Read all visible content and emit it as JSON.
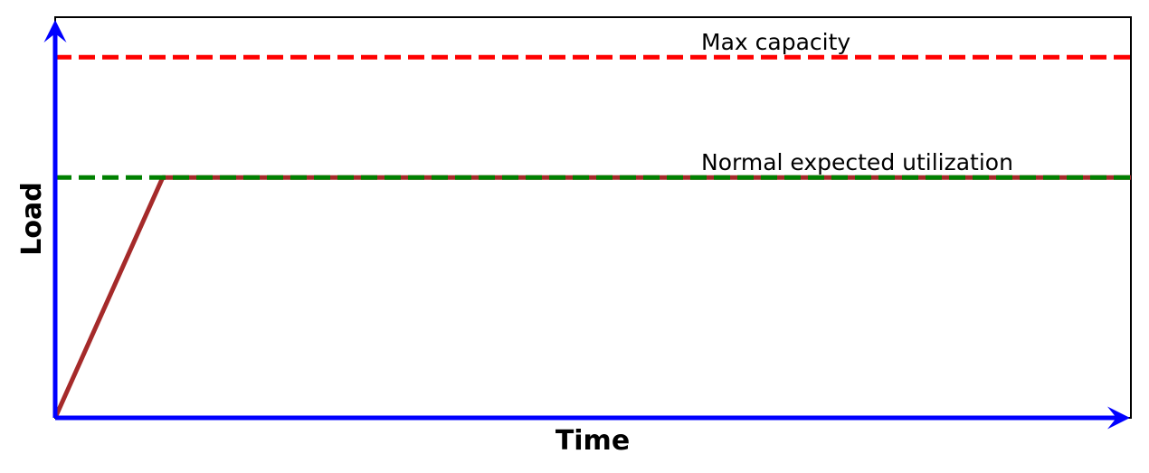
{
  "chart_data": {
    "type": "line",
    "title": "",
    "xlabel": "Time",
    "ylabel": "Load",
    "xlim": [
      0,
      10
    ],
    "ylim": [
      0,
      10
    ],
    "grid": false,
    "x_ticks": false,
    "y_ticks": false,
    "series": [
      {
        "x": [
          0,
          1,
          10
        ],
        "y": [
          0,
          6,
          6
        ],
        "color": "#a52a2a",
        "style": "solid"
      }
    ],
    "reference_lines": [
      {
        "label": "Max capacity",
        "y": 9,
        "color": "#ff0000",
        "style": "dashed"
      },
      {
        "label": "Normal expected utilization",
        "y": 6,
        "color": "#008000",
        "style": "dashed"
      }
    ],
    "axis_arrow_color": "#0000ff"
  }
}
